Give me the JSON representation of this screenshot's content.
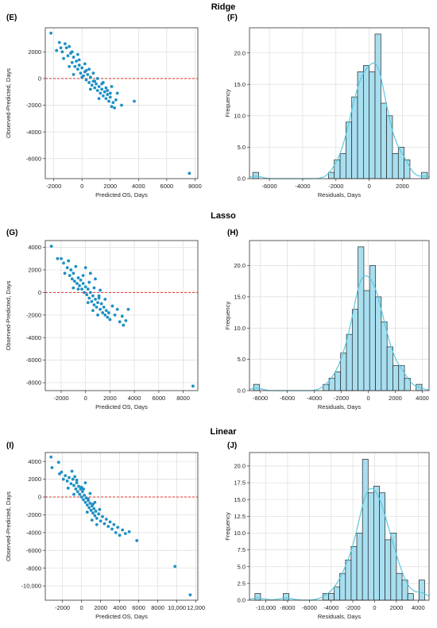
{
  "rows": [
    {
      "title": "Ridge",
      "scatter_label": "(E)",
      "hist_label": "(F)"
    },
    {
      "title": "Lasso",
      "scatter_label": "(G)",
      "hist_label": "(H)"
    },
    {
      "title": "Linear",
      "scatter_label": "(I)",
      "hist_label": "(J)"
    }
  ],
  "colors": {
    "points": "#1f8fc4",
    "reference_line": "#e8332f",
    "bar_fill": "#a8dff0",
    "bar_edge": "#222222",
    "kde_line": "#5bc8de"
  },
  "chart_data": [
    {
      "panel": "(E)",
      "type": "scatter",
      "title": "Ridge",
      "xlabel": "Predicted OS, Days",
      "ylabel": "Observed-Predicted, Days",
      "xlim": [
        -2600,
        8200
      ],
      "ylim": [
        -7500,
        3800
      ],
      "xticks": [
        -2000,
        0,
        2000,
        4000,
        6000,
        8000
      ],
      "xtick_labels": [
        "-2000",
        "0",
        "2000",
        "4000",
        "6000",
        "8000"
      ],
      "yticks": [
        -6000,
        -4000,
        -2000,
        0,
        2000
      ],
      "ytick_labels": [
        "-6000",
        "-4000",
        "-2000",
        "0",
        "2000"
      ],
      "reference_y": 0,
      "grid": true,
      "points": [
        [
          -2200,
          3400
        ],
        [
          -1800,
          2100
        ],
        [
          -1600,
          2700
        ],
        [
          -1500,
          2300
        ],
        [
          -1400,
          2000
        ],
        [
          -1200,
          2600
        ],
        [
          -1100,
          2300
        ],
        [
          -1000,
          1700
        ],
        [
          -900,
          2400
        ],
        [
          -800,
          1900
        ],
        [
          -700,
          1200
        ],
        [
          -600,
          1600
        ],
        [
          -500,
          900
        ],
        [
          -400,
          1300
        ],
        [
          -300,
          700
        ],
        [
          -200,
          1000
        ],
        [
          -100,
          400
        ],
        [
          0,
          800
        ],
        [
          100,
          200
        ],
        [
          200,
          500
        ],
        [
          300,
          -100
        ],
        [
          400,
          300
        ],
        [
          500,
          -300
        ],
        [
          600,
          100
        ],
        [
          700,
          -500
        ],
        [
          800,
          -200
        ],
        [
          900,
          -700
        ],
        [
          1000,
          -400
        ],
        [
          1100,
          -900
        ],
        [
          1200,
          -600
        ],
        [
          1300,
          -1100
        ],
        [
          1400,
          -800
        ],
        [
          1500,
          -1300
        ],
        [
          1600,
          -1000
        ],
        [
          1700,
          -1500
        ],
        [
          1800,
          -1200
        ],
        [
          1900,
          -1700
        ],
        [
          2000,
          -1400
        ],
        [
          2100,
          -2100
        ],
        [
          2200,
          -1800
        ],
        [
          2300,
          -2200
        ],
        [
          2500,
          -1100
        ],
        [
          -1300,
          1500
        ],
        [
          -900,
          900
        ],
        [
          -600,
          300
        ],
        [
          -300,
          1800
        ],
        [
          0,
          100
        ],
        [
          300,
          600
        ],
        [
          600,
          -800
        ],
        [
          900,
          -200
        ],
        [
          1200,
          -1500
        ],
        [
          1500,
          -300
        ],
        [
          1800,
          -900
        ],
        [
          2100,
          -600
        ],
        [
          2400,
          -1600
        ],
        [
          2800,
          -2000
        ],
        [
          3700,
          -1700
        ],
        [
          7600,
          -7100
        ],
        [
          -700,
          2000
        ],
        [
          -200,
          1400
        ],
        [
          200,
          1100
        ],
        [
          500,
          700
        ],
        [
          800,
          400
        ],
        [
          1100,
          0
        ],
        [
          1400,
          -400
        ],
        [
          1700,
          -700
        ],
        [
          2000,
          -1100
        ]
      ]
    },
    {
      "panel": "(F)",
      "type": "bar",
      "title": "Ridge",
      "xlabel": "Residuals, Days",
      "ylabel": "Frequency",
      "xlim": [
        -7200,
        3600
      ],
      "ylim": [
        0,
        24
      ],
      "xticks": [
        -6000,
        -4000,
        -2000,
        0,
        2000
      ],
      "xtick_labels": [
        "-6000",
        "-4000",
        "-2000",
        "0",
        "2000"
      ],
      "yticks": [
        0,
        5,
        10,
        15,
        20
      ],
      "ytick_labels": [
        "0.0",
        "5.0",
        "10.0",
        "15.0",
        "20.0"
      ],
      "bin_edges": [
        -7000,
        -6650,
        -6300,
        -5950,
        -5600,
        -5250,
        -4900,
        -4550,
        -4200,
        -3850,
        -3500,
        -3150,
        -2800,
        -2450,
        -2100,
        -1750,
        -1400,
        -1050,
        -700,
        -350,
        0,
        350,
        700,
        1050,
        1400,
        1750,
        2100,
        2450,
        2800,
        3150,
        3500
      ],
      "values": [
        1,
        0,
        0,
        0,
        0,
        0,
        0,
        0,
        0,
        0,
        0,
        0,
        0,
        1,
        3,
        4,
        9,
        13,
        17,
        18,
        17,
        23,
        12,
        10,
        4,
        5,
        3,
        0,
        0,
        1
      ],
      "kde": true,
      "grid": true
    },
    {
      "panel": "(G)",
      "type": "scatter",
      "title": "Lasso",
      "xlabel": "Predicted OS, Days",
      "ylabel": "Observed-Predicted, Days",
      "xlim": [
        -3300,
        9200
      ],
      "ylim": [
        -8700,
        4600
      ],
      "xticks": [
        -2000,
        0,
        2000,
        4000,
        6000,
        8000
      ],
      "xtick_labels": [
        "-2000",
        "0",
        "2000",
        "4000",
        "6000",
        "8000"
      ],
      "yticks": [
        -8000,
        -6000,
        -4000,
        -2000,
        0,
        2000,
        4000
      ],
      "ytick_labels": [
        "-8000",
        "-6000",
        "-4000",
        "-2000",
        "0",
        "2000",
        "4000"
      ],
      "reference_y": 0,
      "grid": true,
      "points": [
        [
          -2800,
          4100
        ],
        [
          -2300,
          3000
        ],
        [
          -2000,
          3000
        ],
        [
          -1800,
          2600
        ],
        [
          -1700,
          1700
        ],
        [
          -1500,
          2200
        ],
        [
          -1400,
          2800
        ],
        [
          -1300,
          1500
        ],
        [
          -1200,
          2000
        ],
        [
          -1100,
          1200
        ],
        [
          -1000,
          1700
        ],
        [
          -900,
          1000
        ],
        [
          -800,
          2300
        ],
        [
          -700,
          800
        ],
        [
          -600,
          1300
        ],
        [
          -500,
          600
        ],
        [
          -400,
          1100
        ],
        [
          -300,
          300
        ],
        [
          -200,
          800
        ],
        [
          -100,
          0
        ],
        [
          0,
          500
        ],
        [
          100,
          -200
        ],
        [
          200,
          300
        ],
        [
          300,
          -500
        ],
        [
          400,
          0
        ],
        [
          500,
          -800
        ],
        [
          600,
          -300
        ],
        [
          700,
          -1100
        ],
        [
          800,
          -600
        ],
        [
          900,
          -1300
        ],
        [
          1000,
          -900
        ],
        [
          1100,
          -500
        ],
        [
          1200,
          -1500
        ],
        [
          1300,
          -1000
        ],
        [
          1400,
          -1800
        ],
        [
          1500,
          -1300
        ],
        [
          1600,
          -2000
        ],
        [
          1700,
          -1600
        ],
        [
          1800,
          -2200
        ],
        [
          1900,
          -1800
        ],
        [
          2000,
          -2400
        ],
        [
          2200,
          -1200
        ],
        [
          2400,
          -2000
        ],
        [
          2600,
          -1500
        ],
        [
          2800,
          -2600
        ],
        [
          3000,
          -2100
        ],
        [
          3100,
          -2900
        ],
        [
          3300,
          -2500
        ],
        [
          3500,
          -1500
        ],
        [
          0,
          2200
        ],
        [
          400,
          1700
        ],
        [
          800,
          1200
        ],
        [
          1200,
          200
        ],
        [
          1600,
          -600
        ],
        [
          -600,
          300
        ],
        [
          200,
          -900
        ],
        [
          600,
          -1600
        ],
        [
          1000,
          -2000
        ],
        [
          -1000,
          400
        ],
        [
          8800,
          -8300
        ],
        [
          -200,
          1500
        ],
        [
          300,
          900
        ],
        [
          700,
          400
        ],
        [
          1100,
          -300
        ]
      ]
    },
    {
      "panel": "(H)",
      "type": "bar",
      "title": "Lasso",
      "xlabel": "Residuals, Days",
      "ylabel": "Frequency",
      "xlim": [
        -8800,
        4500
      ],
      "ylim": [
        0,
        24
      ],
      "xticks": [
        -8000,
        -6000,
        -4000,
        -2000,
        0,
        2000,
        4000
      ],
      "xtick_labels": [
        "-8000",
        "-6000",
        "-4000",
        "-2000",
        "0",
        "2000",
        "4000"
      ],
      "yticks": [
        0,
        5,
        10,
        15,
        20
      ],
      "ytick_labels": [
        "0.0",
        "5.0",
        "10.0",
        "15.0",
        "20.0"
      ],
      "bin_edges": [
        -8500,
        -8070,
        -7640,
        -7210,
        -6780,
        -6350,
        -5920,
        -5490,
        -5060,
        -4630,
        -4200,
        -3770,
        -3340,
        -2910,
        -2480,
        -2050,
        -1620,
        -1190,
        -760,
        -330,
        100,
        530,
        960,
        1390,
        1820,
        2250,
        2680,
        3110,
        3540,
        3970,
        4400
      ],
      "values": [
        1,
        0,
        0,
        0,
        0,
        0,
        0,
        0,
        0,
        0,
        0,
        0,
        1,
        2,
        3,
        6,
        9,
        13,
        23,
        16,
        20,
        15,
        11,
        7,
        4,
        4,
        2,
        0,
        1,
        0
      ],
      "kde": true,
      "grid": true
    },
    {
      "panel": "(I)",
      "type": "scatter",
      "title": "Linear",
      "xlabel": "Predicted OS, Days",
      "ylabel": "Observed-Predicted, Days",
      "xlim": [
        -3800,
        12200
      ],
      "ylim": [
        -11600,
        5000
      ],
      "xticks": [
        -2000,
        0,
        2000,
        4000,
        6000,
        8000,
        10000,
        12000
      ],
      "xtick_labels": [
        "-2000",
        "0",
        "2000",
        "4000",
        "6000",
        "8000",
        "10,000",
        "12,000"
      ],
      "yticks": [
        -10000,
        -8000,
        -6000,
        -4000,
        -2000,
        0,
        2000,
        4000
      ],
      "ytick_labels": [
        "-10,000",
        "-8000",
        "-6000",
        "-4000",
        "-2000",
        "0",
        "2000",
        "4000"
      ],
      "reference_y": 0,
      "grid": true,
      "points": [
        [
          -3200,
          4500
        ],
        [
          -3100,
          3300
        ],
        [
          -2400,
          3900
        ],
        [
          -2300,
          2600
        ],
        [
          -2100,
          2800
        ],
        [
          -1900,
          2000
        ],
        [
          -1700,
          2400
        ],
        [
          -1500,
          1800
        ],
        [
          -1300,
          2200
        ],
        [
          -1100,
          1500
        ],
        [
          -900,
          2000
        ],
        [
          -800,
          1300
        ],
        [
          -700,
          2300
        ],
        [
          -600,
          900
        ],
        [
          -500,
          1600
        ],
        [
          -400,
          600
        ],
        [
          -300,
          1200
        ],
        [
          -200,
          300
        ],
        [
          -100,
          900
        ],
        [
          0,
          0
        ],
        [
          100,
          600
        ],
        [
          200,
          -300
        ],
        [
          300,
          200
        ],
        [
          400,
          -600
        ],
        [
          500,
          -100
        ],
        [
          600,
          -900
        ],
        [
          700,
          -400
        ],
        [
          800,
          -1200
        ],
        [
          900,
          -700
        ],
        [
          1000,
          -1500
        ],
        [
          1100,
          -1000
        ],
        [
          1200,
          -1800
        ],
        [
          1300,
          -1300
        ],
        [
          1400,
          -2100
        ],
        [
          1500,
          -1600
        ],
        [
          1600,
          -2400
        ],
        [
          1800,
          -1900
        ],
        [
          2000,
          -2700
        ],
        [
          2200,
          -2200
        ],
        [
          2400,
          -3000
        ],
        [
          2600,
          -2500
        ],
        [
          2800,
          -3300
        ],
        [
          3000,
          -2800
        ],
        [
          3200,
          -3600
        ],
        [
          3400,
          -3100
        ],
        [
          3600,
          -4000
        ],
        [
          3800,
          -3400
        ],
        [
          4000,
          -4300
        ],
        [
          4300,
          -3700
        ],
        [
          4600,
          -4100
        ],
        [
          5000,
          -3900
        ],
        [
          5800,
          -4900
        ],
        [
          400,
          1600
        ],
        [
          900,
          400
        ],
        [
          1400,
          -600
        ],
        [
          1900,
          -1400
        ],
        [
          -1000,
          2900
        ],
        [
          -500,
          1900
        ],
        [
          0,
          1100
        ],
        [
          600,
          -1700
        ],
        [
          1100,
          -2600
        ],
        [
          1600,
          -3100
        ],
        [
          9800,
          -7800
        ],
        [
          11400,
          -11000
        ],
        [
          -1400,
          1000
        ],
        [
          -800,
          300
        ],
        [
          200,
          900
        ],
        [
          700,
          -200
        ],
        [
          1200,
          -800
        ]
      ]
    },
    {
      "panel": "(J)",
      "type": "bar",
      "title": "Linear",
      "xlabel": "Residuals, Days",
      "ylabel": "Frequency",
      "xlim": [
        -11500,
        5000
      ],
      "ylim": [
        0,
        22
      ],
      "xticks": [
        -10000,
        -8000,
        -6000,
        -4000,
        -2000,
        0,
        2000,
        4000
      ],
      "xtick_labels": [
        "-10,000",
        "-8000",
        "-6000",
        "-4000",
        "-2000",
        "0",
        "2000",
        "4000"
      ],
      "yticks": [
        0,
        2.5,
        5,
        7.5,
        10,
        12.5,
        15,
        17.5,
        20
      ],
      "ytick_labels": [
        "0.0",
        "2.5",
        "5.0",
        "7.5",
        "10.0",
        "12.5",
        "15.0",
        "17.5",
        "20.0"
      ],
      "bin_edges": [
        -11000,
        -10480,
        -9960,
        -9440,
        -8920,
        -8400,
        -7880,
        -7360,
        -6840,
        -6320,
        -5800,
        -5280,
        -4760,
        -4240,
        -3720,
        -3200,
        -2680,
        -2160,
        -1640,
        -1120,
        -600,
        -80,
        440,
        960,
        1480,
        2000,
        2520,
        3040,
        3560,
        4080,
        4600
      ],
      "values": [
        1,
        0,
        0,
        0,
        0,
        1,
        0,
        0,
        0,
        0,
        0,
        0,
        1,
        1,
        2,
        4,
        6,
        8,
        10,
        21,
        16,
        17,
        16,
        9,
        10,
        4,
        3,
        1,
        0,
        3
      ],
      "kde": true,
      "grid": true
    }
  ]
}
